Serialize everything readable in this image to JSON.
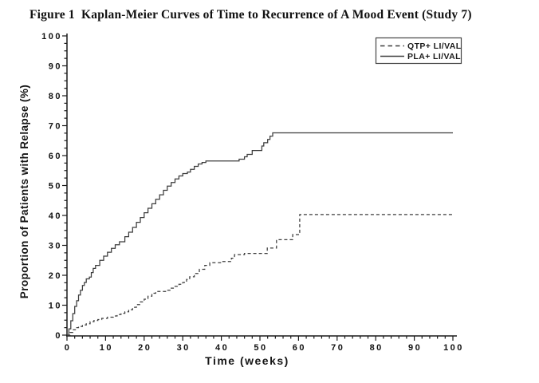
{
  "figure": {
    "title": "Figure 1  Kaplan-Meier Curves of Time to Recurrence of A Mood Event (Study 7)"
  },
  "chart_data": {
    "type": "line",
    "subtype": "kaplan-meier-step",
    "title": "Figure 1  Kaplan-Meier Curves of Time to Recurrence of A Mood Event (Study 7)",
    "xlabel": "Time (weeks)",
    "ylabel": "Proportion of Patients with Relapse (%)",
    "xlim": [
      0,
      100
    ],
    "ylim": [
      0,
      100
    ],
    "x_major_ticks": [
      0,
      10,
      20,
      30,
      40,
      50,
      60,
      70,
      80,
      90,
      100
    ],
    "x_minor_step": 2,
    "y_major_ticks": [
      0,
      10,
      20,
      30,
      40,
      50,
      60,
      70,
      80,
      90,
      100
    ],
    "y_minor_step": 2.5,
    "grid": "off",
    "legend_position": "top-right-inside",
    "axis_color": "#1a1a1a",
    "curve_color": "#3c3c3c",
    "series": [
      {
        "name": "QTP+ LI/VAL",
        "line_style": "dashed",
        "final_value_pct": 40.3,
        "points": [
          [
            0,
            0
          ],
          [
            0.8,
            0.9
          ],
          [
            1.5,
            1.8
          ],
          [
            2.2,
            2.5
          ],
          [
            3,
            2.9
          ],
          [
            4,
            3.4
          ],
          [
            5,
            3.8
          ],
          [
            6,
            4.5
          ],
          [
            7,
            4.9
          ],
          [
            8,
            5.2
          ],
          [
            9,
            5.6
          ],
          [
            10.5,
            6
          ],
          [
            12,
            6.4
          ],
          [
            13,
            6.9
          ],
          [
            14,
            7.3
          ],
          [
            15,
            7.8
          ],
          [
            16,
            8.5
          ],
          [
            17,
            9.3
          ],
          [
            18,
            10.2
          ],
          [
            19,
            11.1
          ],
          [
            20,
            12
          ],
          [
            21,
            13
          ],
          [
            22,
            14
          ],
          [
            23,
            14.6
          ],
          [
            26,
            15
          ],
          [
            27,
            15.7
          ],
          [
            28,
            16.3
          ],
          [
            29,
            17
          ],
          [
            30,
            17.6
          ],
          [
            31,
            18.6
          ],
          [
            31.8,
            19.5
          ],
          [
            33,
            20.6
          ],
          [
            34.3,
            22
          ],
          [
            35.7,
            23.3
          ],
          [
            37,
            24.2
          ],
          [
            40,
            24.6
          ],
          [
            42.6,
            25.7
          ],
          [
            43.4,
            26.9
          ],
          [
            46,
            27.3
          ],
          [
            51.9,
            29.1
          ],
          [
            54.3,
            31.9
          ],
          [
            58.5,
            33.6
          ],
          [
            60.3,
            40.3
          ],
          [
            100,
            40.3
          ]
        ]
      },
      {
        "name": "PLA+ LI/VAL",
        "line_style": "solid",
        "final_value_pct": 67.6,
        "points": [
          [
            0,
            0
          ],
          [
            0.5,
            2.1
          ],
          [
            1,
            4.8
          ],
          [
            1.5,
            7.2
          ],
          [
            2,
            9.6
          ],
          [
            2.5,
            11.5
          ],
          [
            3,
            13.4
          ],
          [
            3.5,
            15
          ],
          [
            4,
            16.6
          ],
          [
            4.5,
            17.6
          ],
          [
            5,
            18.8
          ],
          [
            5.8,
            19.4
          ],
          [
            6.3,
            20.9
          ],
          [
            6.8,
            22.3
          ],
          [
            7.4,
            23.3
          ],
          [
            8.5,
            25
          ],
          [
            9.5,
            26.4
          ],
          [
            10.5,
            27.7
          ],
          [
            11.5,
            29
          ],
          [
            12.5,
            30.2
          ],
          [
            13.6,
            31.2
          ],
          [
            15,
            32.9
          ],
          [
            16,
            34.4
          ],
          [
            17,
            36
          ],
          [
            18,
            37.7
          ],
          [
            19,
            39.3
          ],
          [
            20,
            40.9
          ],
          [
            21,
            42.4
          ],
          [
            22,
            43.9
          ],
          [
            23,
            45.4
          ],
          [
            24,
            46.9
          ],
          [
            25,
            48.4
          ],
          [
            26,
            49.8
          ],
          [
            27,
            51
          ],
          [
            28,
            52.2
          ],
          [
            29,
            53.2
          ],
          [
            30,
            54
          ],
          [
            31.2,
            54.5
          ],
          [
            32,
            55.4
          ],
          [
            33,
            56.4
          ],
          [
            34,
            57.2
          ],
          [
            35,
            57.7
          ],
          [
            36,
            58.2
          ],
          [
            44.6,
            58.8
          ],
          [
            46,
            59.6
          ],
          [
            46.7,
            60.4
          ],
          [
            48,
            61.7
          ],
          [
            50.5,
            63.2
          ],
          [
            51,
            64.3
          ],
          [
            52,
            65.4
          ],
          [
            52.6,
            66.5
          ],
          [
            53.3,
            67.6
          ],
          [
            100,
            67.6
          ]
        ]
      }
    ]
  }
}
